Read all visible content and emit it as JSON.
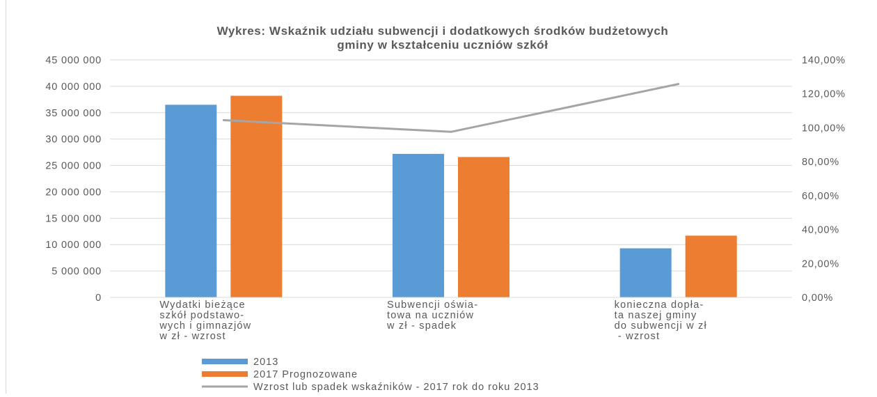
{
  "chart_data": {
    "type": "bar",
    "title_lines": [
      "Wykres: Wskaźnik udziału subwencji i dodatkowych środków budżetowych",
      "gminy w kształceniu uczniów szkół"
    ],
    "categories": [
      [
        "Wydatki bieżące",
        "szkół podstawo-",
        "wych i gimnazjów",
        "w zł - wzrost"
      ],
      [
        "Subwencji oświa-",
        "towa na uczniów",
        "w zł - spadek"
      ],
      [
        "konieczna dopła-",
        "ta naszej gminy",
        "do subwencji w zł",
        " - wzrost"
      ]
    ],
    "series": [
      {
        "name": "2013",
        "type": "bar",
        "axis": "left",
        "color": "#5b9bd5",
        "values": [
          36500000,
          27200000,
          9300000
        ]
      },
      {
        "name": "2017 Prognozowane",
        "type": "bar",
        "axis": "left",
        "color": "#ed7d31",
        "values": [
          38200000,
          26600000,
          11700000
        ]
      },
      {
        "name": "Wzrost lub spadek wskaźników - 2017 rok do roku 2013",
        "type": "line",
        "axis": "right",
        "color": "#a5a5a5",
        "values": [
          1.045,
          0.976,
          1.258
        ]
      }
    ],
    "left_axis": {
      "min": 0,
      "max": 45000000,
      "step": 5000000,
      "tick_labels": [
        "0",
        "5 000 000",
        "10 000 000",
        "15 000 000",
        "20 000 000",
        "25 000 000",
        "30 000 000",
        "35 000 000",
        "40 000 000",
        "45 000 000"
      ]
    },
    "right_axis": {
      "min": 0,
      "max": 1.4,
      "step": 0.2,
      "tick_labels": [
        "0,00%",
        "20,00%",
        "40,00%",
        "60,00%",
        "80,00%",
        "100,00%",
        "120,00%",
        "140,00%"
      ]
    },
    "grid": true,
    "legend_position": "bottom-left"
  }
}
